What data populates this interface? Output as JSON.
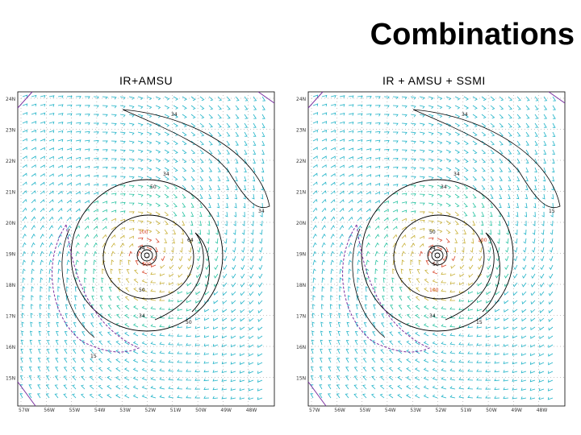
{
  "title": "Combinations",
  "colors": {
    "background": "#ffffff",
    "barb_cyan": "#1fb3c8",
    "barb_teal": "#24c2a0",
    "barb_yellow": "#c8b036",
    "barb_red": "#d8442a",
    "purple": "#7a2fa0",
    "contour": "#000000",
    "grid": "#8a8a8a"
  },
  "panels": [
    {
      "id": "left",
      "title": "IR+AMSU",
      "y_labels": [
        "24N",
        "23N",
        "22N",
        "21N",
        "20N",
        "19N",
        "18N",
        "17N",
        "16N",
        "15N"
      ],
      "x_labels": [
        "57W",
        "56W",
        "55W",
        "54W",
        "53W",
        "52W",
        "51W",
        "50W",
        "49W",
        "48W"
      ],
      "contour_labels": [
        "34",
        "34",
        "34",
        "50",
        "64",
        "50",
        "100",
        "100",
        "34",
        "50",
        "34",
        "15"
      ]
    },
    {
      "id": "right",
      "title": "IR + AMSU + SSMI",
      "y_labels": [
        "24N",
        "23N",
        "22N",
        "21N",
        "20N",
        "19N",
        "18N",
        "17N",
        "16N",
        "15N"
      ],
      "x_labels": [
        "57W",
        "56W",
        "55W",
        "54W",
        "53W",
        "52W",
        "51W",
        "50W",
        "49W",
        "48W"
      ],
      "contour_labels": [
        "34",
        "34",
        "15",
        "34",
        "100",
        "100",
        "50",
        "50",
        "34",
        "15",
        "34"
      ]
    }
  ]
}
